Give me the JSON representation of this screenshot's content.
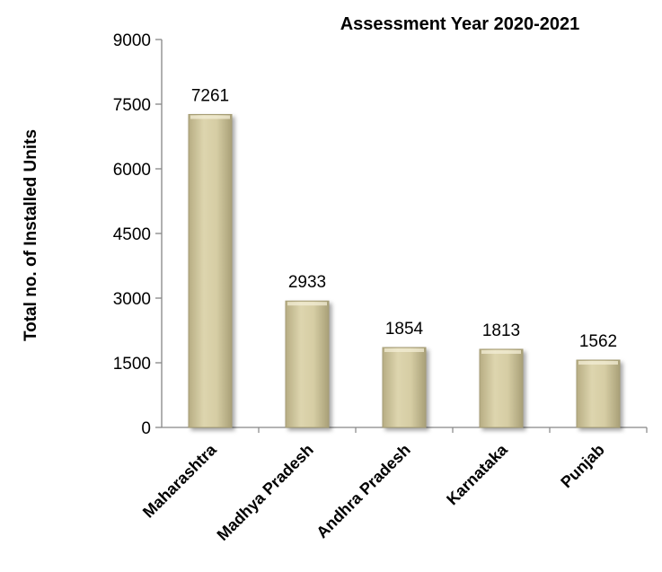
{
  "chart_data": {
    "type": "bar",
    "title": "Assessment Year 2020-2021",
    "xlabel": "",
    "ylabel": "Total no. of Installed Units",
    "categories": [
      "Maharashtra",
      "Madhya Pradesh",
      "Andhra Pradesh",
      "Karnataka",
      "Punjab"
    ],
    "values": [
      7261,
      2933,
      1854,
      1813,
      1562
    ],
    "data_labels": [
      "7261",
      "2933",
      "1854",
      "1813",
      "1562"
    ],
    "ylim": [
      0,
      9000
    ],
    "yticks": [
      0,
      1500,
      3000,
      4500,
      6000,
      7500,
      9000
    ],
    "ytick_labels": [
      "0",
      "1500",
      "3000",
      "4500",
      "6000",
      "7500",
      "9000"
    ],
    "grid": false,
    "legend": "none",
    "bar_color": "#d3ca9f",
    "bar_edge_color": "#a69d76"
  }
}
